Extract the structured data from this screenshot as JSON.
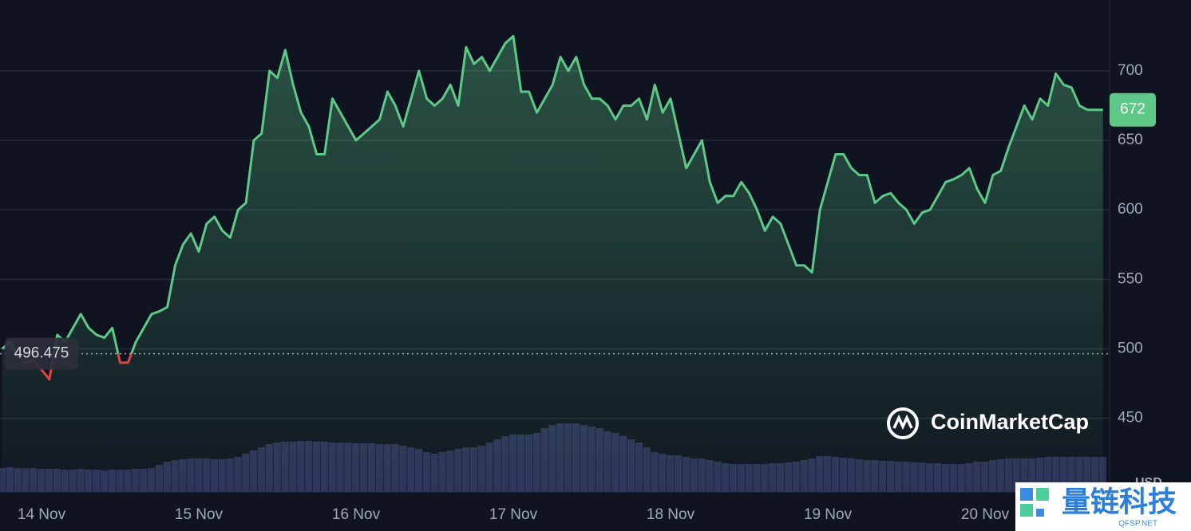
{
  "chart_data": {
    "type": "line",
    "categories": [
      null,
      null,
      null,
      null,
      null,
      "14 Nov",
      null,
      null,
      null,
      null,
      null,
      null,
      null,
      null,
      null,
      null,
      null,
      null,
      null,
      null,
      null,
      null,
      null,
      null,
      null,
      "15 Nov",
      null,
      null,
      null,
      null,
      null,
      null,
      null,
      null,
      null,
      null,
      null,
      null,
      null,
      null,
      null,
      null,
      null,
      null,
      null,
      "16 Nov",
      null,
      null,
      null,
      null,
      null,
      null,
      null,
      null,
      null,
      null,
      null,
      null,
      null,
      null,
      null,
      null,
      null,
      null,
      null,
      "17 Nov",
      null,
      null,
      null,
      null,
      null,
      null,
      null,
      null,
      null,
      null,
      null,
      null,
      null,
      null,
      null,
      null,
      null,
      null,
      null,
      "18 Nov",
      null,
      null,
      null,
      null,
      null,
      null,
      null,
      null,
      null,
      null,
      null,
      null,
      null,
      null,
      null,
      null,
      null,
      null,
      null,
      "19 Nov",
      null,
      null,
      null,
      null,
      null,
      null,
      null,
      null,
      null,
      null,
      null,
      null,
      null,
      null,
      null,
      null,
      null,
      null,
      null,
      "20 Nov",
      null,
      null,
      null,
      null,
      null,
      null,
      null,
      null,
      null,
      null,
      null,
      null,
      null,
      null,
      null
    ],
    "series": [
      {
        "color": "#5dc887",
        "down_color": "#e0443f",
        "values": [
          500,
          505,
          495,
          490,
          492,
          485,
          478,
          510,
          505,
          515,
          525,
          515,
          510,
          508,
          515,
          490,
          490,
          505,
          515,
          525,
          527,
          530,
          560,
          575,
          583,
          570,
          590,
          595,
          585,
          580,
          600,
          605,
          650,
          655,
          700,
          695,
          715,
          690,
          670,
          660,
          640,
          640,
          680,
          670,
          660,
          650,
          655,
          660,
          665,
          685,
          675,
          660,
          680,
          700,
          680,
          675,
          680,
          690,
          675,
          717,
          705,
          710,
          700,
          710,
          720,
          725,
          685,
          685,
          670,
          680,
          690,
          710,
          700,
          710,
          690,
          680,
          680,
          675,
          665,
          675,
          675,
          680,
          665,
          690,
          670,
          680,
          655,
          630,
          640,
          650,
          620,
          605,
          610,
          610,
          620,
          612,
          600,
          585,
          595,
          590,
          575,
          560,
          560,
          555,
          600,
          620,
          640,
          640,
          630,
          625,
          625,
          605,
          610,
          612,
          605,
          600,
          590,
          598,
          600,
          610,
          620,
          622,
          625,
          630,
          615,
          605,
          625,
          628,
          645,
          660,
          675,
          665,
          680,
          675,
          698,
          690,
          688,
          675,
          672,
          672,
          672
        ]
      }
    ],
    "volume": {
      "color": "#2d3358",
      "values": [
        30,
        31,
        30,
        30,
        30,
        29,
        29,
        29,
        28,
        28,
        29,
        28,
        28,
        27,
        28,
        28,
        28,
        29,
        29,
        30,
        34,
        38,
        40,
        41,
        42,
        42,
        42,
        41,
        41,
        42,
        44,
        48,
        52,
        56,
        60,
        62,
        63,
        63,
        64,
        64,
        63,
        63,
        62,
        62,
        62,
        61,
        61,
        61,
        60,
        60,
        60,
        58,
        56,
        54,
        50,
        48,
        50,
        52,
        54,
        56,
        56,
        58,
        62,
        66,
        70,
        72,
        72,
        72,
        74,
        80,
        84,
        86,
        86,
        86,
        84,
        82,
        80,
        76,
        74,
        70,
        66,
        62,
        56,
        50,
        48,
        46,
        46,
        44,
        42,
        42,
        40,
        38,
        36,
        35,
        35,
        35,
        35,
        35,
        36,
        36,
        37,
        38,
        40,
        42,
        45,
        45,
        44,
        43,
        42,
        41,
        40,
        40,
        39,
        39,
        38,
        38,
        37,
        37,
        36,
        36,
        35,
        35,
        35,
        36,
        38,
        38,
        40,
        41,
        42,
        42,
        42,
        42,
        43,
        44,
        44,
        44,
        44,
        44,
        44,
        44,
        44
      ]
    },
    "baseline": 496.475,
    "ylim": [
      397,
      751
    ],
    "yticks": [
      450,
      500,
      550,
      600,
      650,
      700
    ],
    "grid": true,
    "currency": "USD",
    "brand": "CoinMarketCap",
    "watermark": {
      "text": "量链科技",
      "sub": "QFSP.NET"
    }
  }
}
